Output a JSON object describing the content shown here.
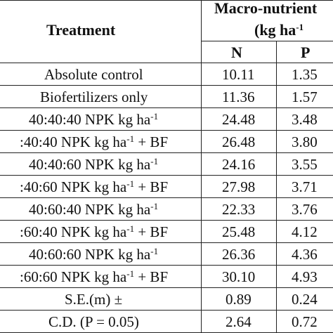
{
  "header": {
    "treatment": "Treatment",
    "group_line1": "Macro-nutrient",
    "group_line2_pre": "(kg ha",
    "group_line2_sup": "-1",
    "col_n": "N",
    "col_p": "P"
  },
  "rows": [
    {
      "pre": "Absolute control",
      "sup": "",
      "post": "",
      "n": "10.11",
      "p": "1.35"
    },
    {
      "pre": "Biofertilizers only",
      "sup": "",
      "post": "",
      "n": "11.36",
      "p": "1.57"
    },
    {
      "pre": "40:40:40 NPK kg ha",
      "sup": "-1",
      "post": "",
      "n": "24.48",
      "p": "3.48"
    },
    {
      "pre": ":40:40 NPK kg ha",
      "sup": "-1",
      "post": " + BF",
      "n": "26.48",
      "p": "3.80"
    },
    {
      "pre": "40:40:60 NPK kg ha",
      "sup": "-1",
      "post": "",
      "n": "24.16",
      "p": "3.55"
    },
    {
      "pre": ":40:60 NPK kg ha",
      "sup": "-1",
      "post": " + BF",
      "n": "27.98",
      "p": "3.71"
    },
    {
      "pre": "40:60:40 NPK kg ha",
      "sup": "-1",
      "post": "",
      "n": "22.33",
      "p": "3.76"
    },
    {
      "pre": ":60:40 NPK kg ha",
      "sup": "-1",
      "post": " + BF",
      "n": "25.48",
      "p": "4.12"
    },
    {
      "pre": "40:60:60 NPK kg ha",
      "sup": "-1",
      "post": "",
      "n": "26.36",
      "p": "4.36"
    },
    {
      "pre": ":60:60 NPK kg ha",
      "sup": "-1",
      "post": " + BF",
      "n": "30.10",
      "p": "4.93"
    },
    {
      "pre": "S.E.(m) ±",
      "sup": "",
      "post": "",
      "n": "0.89",
      "p": "0.24"
    },
    {
      "pre": "C.D. (P = 0.05)",
      "sup": "",
      "post": "",
      "n": "2.64",
      "p": "0.72"
    }
  ]
}
